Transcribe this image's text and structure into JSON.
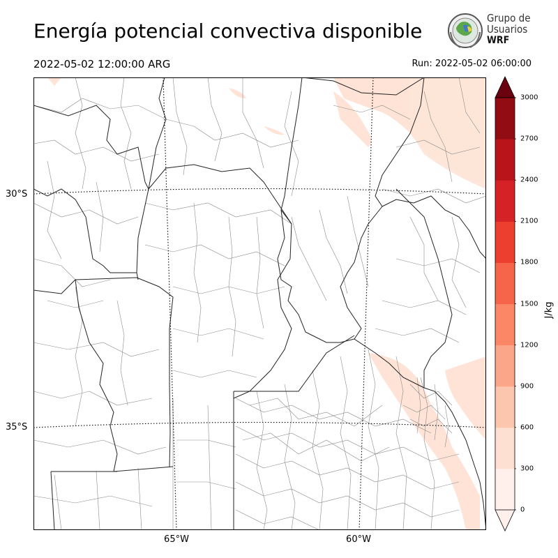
{
  "header": {
    "title": "Energía potencial convectiva disponible",
    "valid_time": "2022-05-02 12:00:00 ARG",
    "run_time": "Run: 2022-05-02 06:00:00"
  },
  "logo": {
    "line1": "Grupo de",
    "line2": "Usuarios",
    "line3": "WRF",
    "icon": "globe-emblem-icon"
  },
  "map": {
    "lat_labels": [
      "30°S",
      "35°S"
    ],
    "lon_labels": [
      "65°W",
      "60°W"
    ],
    "gridline_style": "dotted"
  },
  "colorbar": {
    "unit": "J/kg",
    "ticks": [
      "0",
      "300",
      "600",
      "900",
      "1200",
      "1500",
      "1800",
      "2100",
      "2400",
      "2700",
      "3000"
    ],
    "colors": [
      "#fff0eb",
      "#fee0d2",
      "#fcc5ad",
      "#fca689",
      "#fb8767",
      "#f6654a",
      "#ec3f30",
      "#d42226",
      "#b81419",
      "#920c13",
      "#6b0210"
    ],
    "extend": "both"
  }
}
